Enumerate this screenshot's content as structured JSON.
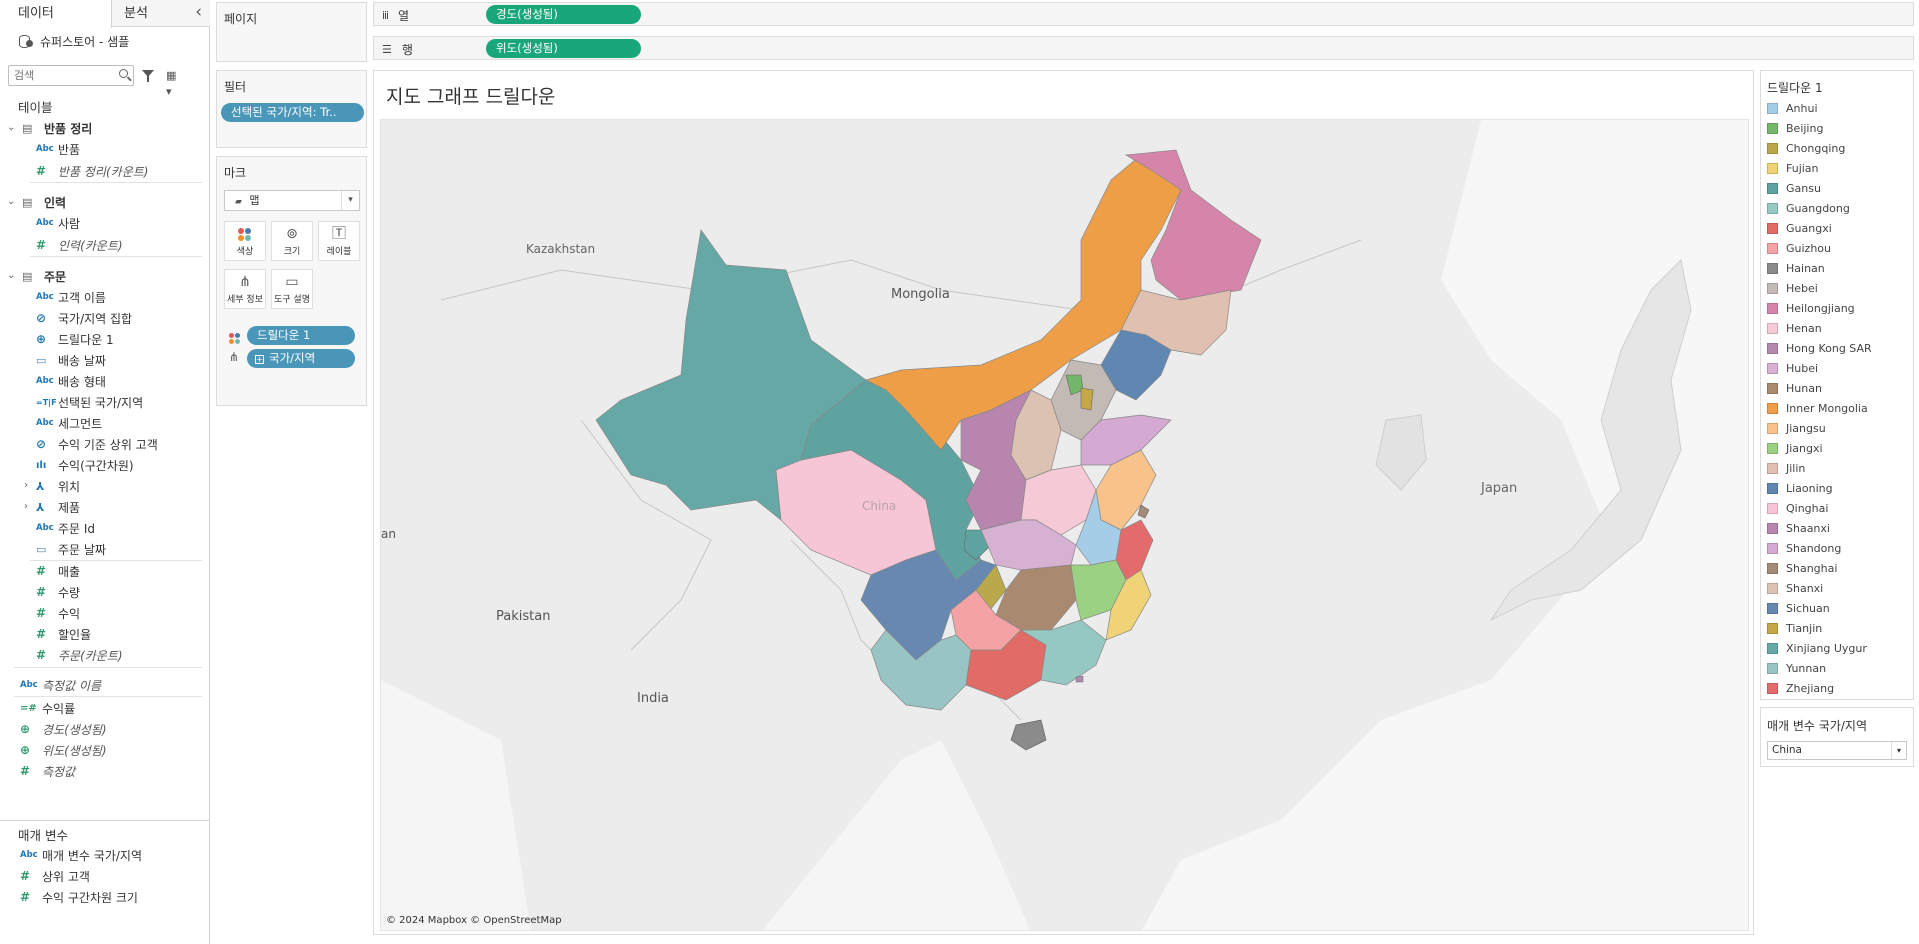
{
  "datapane": {
    "tab_data": "데이터",
    "tab_analytics": "분석",
    "datasource": "슈퍼스토어 - 샘플",
    "search_placeholder": "검색",
    "tables_header": "테이블",
    "groups": [
      {
        "name": "반품 정리",
        "fields": [
          {
            "type": "Abc",
            "label": "반품"
          },
          {
            "type": "#",
            "label": "반품 정리(카운트)"
          }
        ]
      },
      {
        "name": "인력",
        "fields": [
          {
            "type": "Abc",
            "label": "사람"
          },
          {
            "type": "#",
            "label": "인력(카운트)"
          }
        ]
      },
      {
        "name": "주문",
        "fields": [
          {
            "type": "Abc",
            "label": "고객 이름"
          },
          {
            "type": "set",
            "label": "국가/지역 집합"
          },
          {
            "type": "geo",
            "label": "드릴다운 1"
          },
          {
            "type": "cal",
            "label": "배송 날짜"
          },
          {
            "type": "Abc",
            "label": "배송 형태"
          },
          {
            "type": "=T|F",
            "label": "선택된 국가/지역"
          },
          {
            "type": "Abc",
            "label": "세그먼트"
          },
          {
            "type": "set",
            "label": "수익 기준 상위 고객"
          },
          {
            "type": "bin",
            "label": "수익(구간차원)"
          },
          {
            "type": "hier",
            "label": "위치"
          },
          {
            "type": "hier",
            "label": "제품"
          },
          {
            "type": "Abc",
            "label": "주문 Id"
          },
          {
            "type": "cal",
            "label": "주문 날짜"
          },
          {
            "type": "#",
            "label": "매출"
          },
          {
            "type": "#",
            "label": "수량"
          },
          {
            "type": "#",
            "label": "수익"
          },
          {
            "type": "#",
            "label": "할인율"
          },
          {
            "type": "#",
            "label": "주문(카운트)"
          }
        ]
      }
    ],
    "measure_names": "측정값 이름",
    "extra_fields": [
      {
        "type": "=#",
        "label": "수익률"
      },
      {
        "type": "globe",
        "label": "경도(생성됨)"
      },
      {
        "type": "globe",
        "label": "위도(생성됨)"
      },
      {
        "type": "#",
        "label": "측정값"
      }
    ],
    "params_header": "매개 변수",
    "params": [
      {
        "type": "Abc",
        "label": "매개 변수 국가/지역"
      },
      {
        "type": "#",
        "label": "상위 고객"
      },
      {
        "type": "#",
        "label": "수익 구간차원 크기"
      }
    ]
  },
  "pages_card": {
    "title": "페이지"
  },
  "filters_card": {
    "title": "필터",
    "pill": "선택된 국가/지역: Tr.."
  },
  "marks_card": {
    "title": "마크",
    "mark_type": "맵",
    "buttons": {
      "color": "색상",
      "size": "크기",
      "label": "레이블",
      "detail": "세부 정보",
      "tooltip": "도구 설명"
    },
    "pills": {
      "color": "드릴다운 1",
      "detail": "국가/지역"
    }
  },
  "shelves": {
    "columns_label": "열",
    "columns_pill": "경도(생성됨)",
    "rows_label": "행",
    "rows_pill": "위도(생성됨)"
  },
  "view": {
    "title": "지도 그래프 드릴다운",
    "copyright": "© 2024 Mapbox © OpenStreetMap",
    "map_labels": {
      "kazakhstan": "Kazakhstan",
      "mongolia": "Mongolia",
      "china": "China",
      "japan": "Japan",
      "pakistan": "Pakistan",
      "india": "India",
      "iran_partial": "an"
    }
  },
  "legend": {
    "title": "드릴다운 1",
    "items": [
      {
        "name": "Anhui",
        "color": "#a6cde8"
      },
      {
        "name": "Beijing",
        "color": "#74b669"
      },
      {
        "name": "Chongqing",
        "color": "#b9a94a"
      },
      {
        "name": "Fujian",
        "color": "#efd376"
      },
      {
        "name": "Gansu",
        "color": "#5ea3a0"
      },
      {
        "name": "Guangdong",
        "color": "#96c8c3"
      },
      {
        "name": "Guangxi",
        "color": "#e06b67"
      },
      {
        "name": "Guizhou",
        "color": "#f3a3a3"
      },
      {
        "name": "Hainan",
        "color": "#8b8b8b"
      },
      {
        "name": "Hebei",
        "color": "#c3b9b5"
      },
      {
        "name": "Heilongjiang",
        "color": "#d585a9"
      },
      {
        "name": "Henan",
        "color": "#f5c9d6"
      },
      {
        "name": "Hong Kong SAR",
        "color": "#b38aae"
      },
      {
        "name": "Hubei",
        "color": "#d7b1d1"
      },
      {
        "name": "Hunan",
        "color": "#a9896f"
      },
      {
        "name": "Inner Mongolia",
        "color": "#ef9e48"
      },
      {
        "name": "Jiangsu",
        "color": "#f8c38a"
      },
      {
        "name": "Jiangxi",
        "color": "#9bd183"
      },
      {
        "name": "Jilin",
        "color": "#dfc0b1"
      },
      {
        "name": "Liaoning",
        "color": "#5f87b1"
      },
      {
        "name": "Qinghai",
        "color": "#f6c6d6"
      },
      {
        "name": "Shaanxi",
        "color": "#b785ad"
      },
      {
        "name": "Shandong",
        "color": "#d4a9d2"
      },
      {
        "name": "Shanghai",
        "color": "#a38b76"
      },
      {
        "name": "Shanxi",
        "color": "#dcc2b3"
      },
      {
        "name": "Sichuan",
        "color": "#6688b1"
      },
      {
        "name": "Tianjin",
        "color": "#c4a845"
      },
      {
        "name": "Xinjiang Uygur",
        "color": "#66a8a5"
      },
      {
        "name": "Yunnan",
        "color": "#98c5c3"
      },
      {
        "name": "Zhejiang",
        "color": "#e46b6b"
      }
    ]
  },
  "parameter_control": {
    "title": "매개 변수 국가/지역",
    "value": "China"
  },
  "colors": {
    "pill_blue": "#4a96b8",
    "pill_green": "#19a779"
  }
}
